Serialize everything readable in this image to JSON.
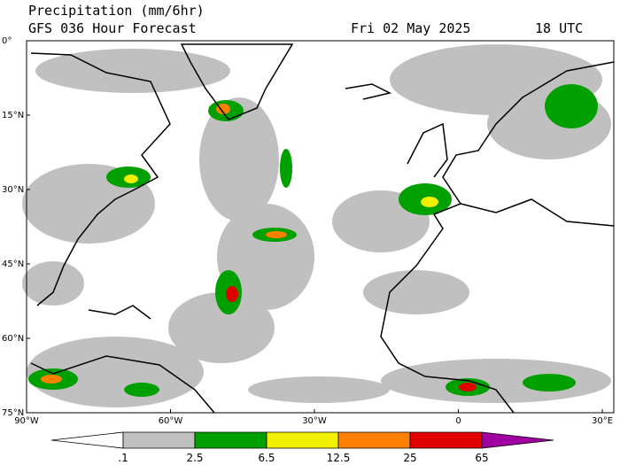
{
  "header": {
    "title": "Precipitation (mm/6hr)",
    "subtitle": "GFS 036 Hour Forecast",
    "date": "Fri 02 May 2025",
    "time": "18 UTC"
  },
  "map": {
    "lat_labels": [
      "75°N",
      "60°N",
      "45°N",
      "30°N",
      "15°N",
      "0°"
    ],
    "lon_labels": [
      "90°W",
      "60°W",
      "30°W",
      "0",
      "30°E"
    ]
  },
  "colorbar": {
    "labels": [
      ".1",
      "2.5",
      "6.5",
      "12.5",
      "25",
      "65"
    ],
    "colors": [
      "#ffffff",
      "#c0c0c0",
      "#00a000",
      "#f0f000",
      "#ff8000",
      "#e00000",
      "#a000a0"
    ]
  }
}
